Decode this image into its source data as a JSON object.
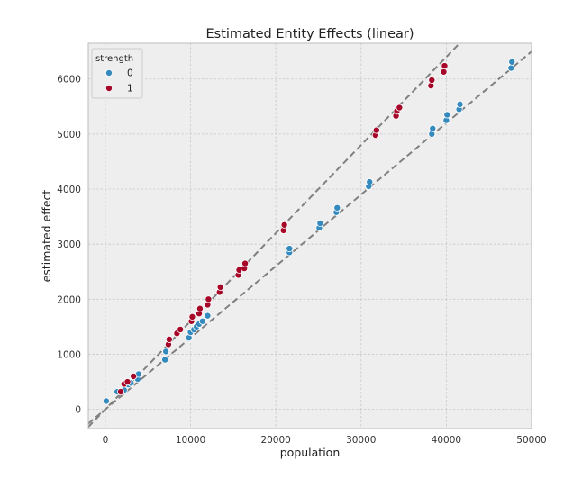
{
  "chart_data": {
    "type": "scatter",
    "title": "Estimated Entity Effects (linear)",
    "xlabel": "population",
    "ylabel": "estimated effect",
    "xlim": [
      -2000,
      50000
    ],
    "ylim": [
      -350,
      6650
    ],
    "xticks": [
      0,
      10000,
      20000,
      30000,
      40000,
      50000
    ],
    "yticks": [
      0,
      1000,
      2000,
      3000,
      4000,
      5000,
      6000
    ],
    "grid": true,
    "legend": {
      "title": "strength",
      "placement": "top-left"
    },
    "series": [
      {
        "name": "0",
        "color": "#348abd",
        "points": [
          [
            100,
            150
          ],
          [
            1400,
            320
          ],
          [
            2200,
            350
          ],
          [
            2700,
            450
          ],
          [
            3000,
            480
          ],
          [
            3800,
            550
          ],
          [
            3900,
            640
          ],
          [
            7000,
            900
          ],
          [
            7100,
            1050
          ],
          [
            9800,
            1300
          ],
          [
            10000,
            1400
          ],
          [
            10400,
            1450
          ],
          [
            10700,
            1500
          ],
          [
            11000,
            1550
          ],
          [
            11400,
            1600
          ],
          [
            12000,
            1700
          ],
          [
            21600,
            2850
          ],
          [
            21600,
            2920
          ],
          [
            25100,
            3300
          ],
          [
            25200,
            3380
          ],
          [
            27100,
            3580
          ],
          [
            27200,
            3660
          ],
          [
            30900,
            4050
          ],
          [
            31000,
            4130
          ],
          [
            38300,
            5000
          ],
          [
            38400,
            5100
          ],
          [
            40000,
            5250
          ],
          [
            40100,
            5350
          ],
          [
            41500,
            5450
          ],
          [
            41600,
            5540
          ],
          [
            47600,
            6200
          ],
          [
            47700,
            6310
          ]
        ]
      },
      {
        "name": "1",
        "color": "#a60628",
        "points": [
          [
            1800,
            320
          ],
          [
            2200,
            460
          ],
          [
            2600,
            500
          ],
          [
            3300,
            600
          ],
          [
            7400,
            1180
          ],
          [
            7500,
            1270
          ],
          [
            8400,
            1380
          ],
          [
            8800,
            1450
          ],
          [
            10100,
            1600
          ],
          [
            10200,
            1680
          ],
          [
            11000,
            1740
          ],
          [
            11100,
            1830
          ],
          [
            12000,
            1900
          ],
          [
            12100,
            2000
          ],
          [
            13400,
            2130
          ],
          [
            13500,
            2220
          ],
          [
            15600,
            2440
          ],
          [
            15700,
            2530
          ],
          [
            16300,
            2560
          ],
          [
            16400,
            2650
          ],
          [
            20900,
            3250
          ],
          [
            21000,
            3350
          ],
          [
            31700,
            4980
          ],
          [
            31800,
            5070
          ],
          [
            34100,
            5330
          ],
          [
            34200,
            5420
          ],
          [
            34500,
            5480
          ],
          [
            38200,
            5880
          ],
          [
            38300,
            5980
          ],
          [
            39700,
            6130
          ],
          [
            39800,
            6240
          ]
        ]
      }
    ],
    "reference_lines": [
      {
        "x": [
          -2000,
          50000
        ],
        "y": [
          -320,
          8000
        ]
      },
      {
        "x": [
          -2000,
          50000
        ],
        "y": [
          -260,
          6500
        ]
      }
    ]
  }
}
